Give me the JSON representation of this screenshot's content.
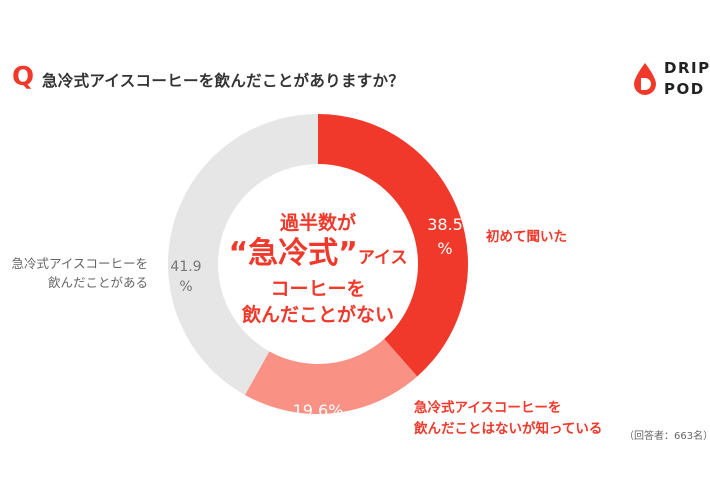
{
  "header": {
    "q_mark": "Q",
    "question": "急冷式アイスコーヒーを飲んだことがありますか？"
  },
  "brand": {
    "line1": "DRIP",
    "line2": "POD",
    "color": "#f0392a"
  },
  "chart_data": {
    "type": "pie",
    "donut": true,
    "title": "",
    "start": "top",
    "direction": "clockwise",
    "slices": [
      {
        "label_lines": [
          "初めて聞いた"
        ],
        "value": 38.5,
        "value_text": "38.5%",
        "color": "#f0392a",
        "label_color": "#f0392a",
        "value_color": "#ffffff"
      },
      {
        "label_lines": [
          "急冷式アイスコーヒーを",
          "飲んだことはないが知っている"
        ],
        "value": 19.6,
        "value_text": "19.6%",
        "color": "#f99284",
        "label_color": "#f0392a",
        "value_color": "#ffffff"
      },
      {
        "label_lines": [
          "急冷式アイスコーヒーを",
          "飲んだことがある"
        ],
        "value": 41.9,
        "value_text": "41.9%",
        "color": "#e6e6e6",
        "label_color": "#666666",
        "value_color": "#777777"
      }
    ],
    "center_text": {
      "line1": "過半数が",
      "line2_quote_open": "“",
      "line2_big": "急冷式",
      "line2_quote_close": "”",
      "line2_small": "アイス",
      "line3": "コーヒーを",
      "line4": "飲んだことがない"
    },
    "value_label_1": "38.5",
    "value_label_1_unit": "%",
    "value_label_2": "19.6%",
    "value_label_3": "41.9",
    "value_label_3_unit": "%"
  },
  "note": "（回答者：663名）"
}
